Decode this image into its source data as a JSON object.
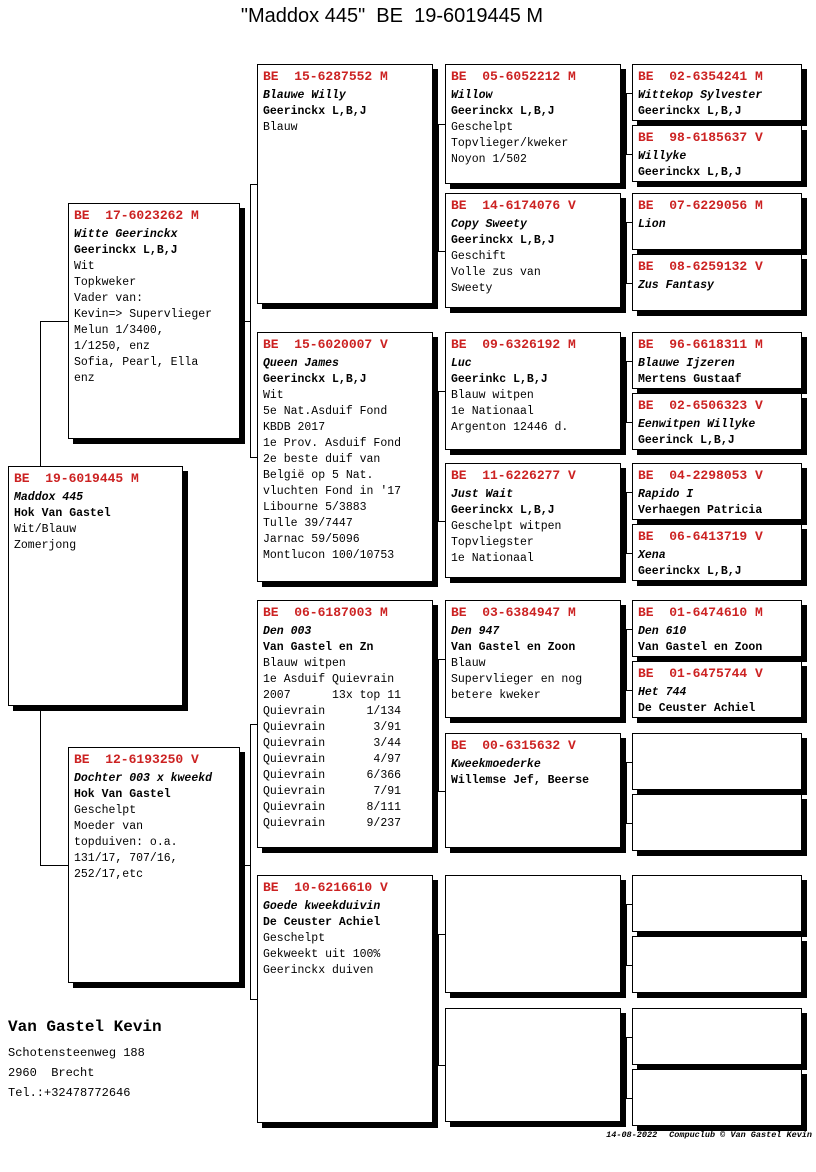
{
  "title": "\"Maddox 445\"  BE  19-6019445 M",
  "colors": {
    "ring_red": "#cc2222",
    "text": "#000000",
    "background": "#ffffff"
  },
  "owner": {
    "name": "Van Gastel Kevin",
    "address_lines": [
      "Schotensteenweg 188",
      "2960  Brecht",
      "Tel.:+32478772646"
    ]
  },
  "footer": {
    "date": "14-08-2022",
    "copyright": "Compuclub © Van Gastel Kevin"
  },
  "pedigree": {
    "gen1": [
      {
        "ring": "BE  19-6019445 M",
        "name": "Maddox 445",
        "breeder": "Hok Van Gastel",
        "lines": [
          "Wit/Blauw",
          "Zomerjong"
        ]
      }
    ],
    "gen2": [
      {
        "ring": "BE  17-6023262 M",
        "name": "Witte Geerinckx",
        "breeder": "Geerinckx L,B,J",
        "lines": [
          "Wit",
          "Topkweker",
          "Vader van:",
          "Kevin=> Supervlieger",
          "Melun 1/3400,",
          "1/1250, enz",
          "Sofia, Pearl, Ella",
          "enz"
        ]
      },
      {
        "ring": "BE  12-6193250 V",
        "name": "Dochter 003 x kweekd",
        "breeder": "Hok Van Gastel",
        "lines": [
          "Geschelpt",
          "Moeder van",
          "topduiven: o.a.",
          "131/17, 707/16,",
          "252/17,etc"
        ]
      }
    ],
    "gen3": [
      {
        "ring": "BE  15-6287552 M",
        "name": "Blauwe Willy",
        "breeder": "Geerinckx L,B,J",
        "lines": [
          "Blauw"
        ]
      },
      {
        "ring": "BE  15-6020007 V",
        "name": "Queen James",
        "breeder": "Geerinckx L,B,J",
        "lines": [
          "Wit",
          "5e Nat.Asduif Fond",
          "KBDB 2017",
          "1e Prov. Asduif Fond",
          "2e beste duif van",
          "België op 5 Nat.",
          "vluchten Fond in '17",
          "Libourne 5/3883",
          "Tulle 39/7447",
          "Jarnac 59/5096",
          "Montlucon 100/10753"
        ]
      },
      {
        "ring": "BE  06-6187003 M",
        "name": "Den 003",
        "breeder": "Van Gastel en Zn",
        "lines": [
          "Blauw witpen",
          "1e Asduif Quievrain",
          "2007      13x top 11",
          "Quievrain      1/134",
          "Quievrain       3/91",
          "Quievrain       3/44",
          "Quievrain       4/97",
          "Quievrain      6/366",
          "Quievrain       7/91",
          "Quievrain      8/111",
          "Quievrain      9/237"
        ]
      },
      {
        "ring": "BE  10-6216610 V",
        "name": "Goede kweekduivin",
        "breeder": "De Ceuster Achiel",
        "lines": [
          "Geschelpt",
          "Gekweekt uit 100%",
          "Geerinckx duiven"
        ]
      }
    ],
    "gen4": [
      {
        "ring": "BE  05-6052212 M",
        "name": "Willow",
        "breeder": "Geerinckx L,B,J",
        "lines": [
          "Geschelpt",
          "Topvlieger/kweker",
          "Noyon 1/502"
        ]
      },
      {
        "ring": "BE  14-6174076 V",
        "name": "Copy Sweety",
        "breeder": "Geerinckx L,B,J",
        "lines": [
          "Geschift",
          "Volle zus van",
          "Sweety"
        ]
      },
      {
        "ring": "BE  09-6326192 M",
        "name": "Luc",
        "breeder": "Geerinkc L,B,J",
        "lines": [
          "Blauw witpen",
          "1e Nationaal",
          "Argenton 12446 d."
        ]
      },
      {
        "ring": "BE  11-6226277 V",
        "name": "Just Wait",
        "breeder": "Geerinckx L,B,J",
        "lines": [
          "Geschelpt witpen",
          "Topvliegster",
          "1e Nationaal"
        ]
      },
      {
        "ring": "BE  03-6384947 M",
        "name": "Den 947",
        "breeder": "Van Gastel en Zoon",
        "lines": [
          "Blauw",
          "Supervlieger en nog",
          "betere kweker"
        ]
      },
      {
        "ring": "BE  00-6315632 V",
        "name": "Kweekmoederke",
        "breeder": "Willemse Jef, Beerse",
        "lines": []
      },
      {
        "empty": true
      },
      {
        "empty": true
      }
    ],
    "gen5": [
      {
        "ring": "BE  02-6354241 M",
        "name": "Wittekop Sylvester",
        "breeder": "Geerinckx L,B,J",
        "lines": []
      },
      {
        "ring": "BE  98-6185637 V",
        "name": "Willyke",
        "breeder": "Geerinckx L,B,J",
        "lines": []
      },
      {
        "ring": "BE  07-6229056 M",
        "name": "Lion",
        "lines": []
      },
      {
        "ring": "BE  08-6259132 V",
        "name": "Zus Fantasy",
        "lines": []
      },
      {
        "ring": "BE  96-6618311 M",
        "name": "Blauwe Ijzeren",
        "breeder": "Mertens Gustaaf",
        "lines": []
      },
      {
        "ring": "BE  02-6506323 V",
        "name": "Eenwitpen Willyke",
        "breeder": "Geerinck L,B,J",
        "lines": []
      },
      {
        "ring": "BE  04-2298053 V",
        "name": "Rapido I",
        "breeder": "Verhaegen Patricia",
        "lines": []
      },
      {
        "ring": "BE  06-6413719 V",
        "name": "Xena",
        "breeder": "Geerinckx L,B,J",
        "lines": []
      },
      {
        "ring": "BE  01-6474610 M",
        "name": "Den 610",
        "breeder": "Van Gastel en Zoon",
        "lines": []
      },
      {
        "ring": "BE  01-6475744 V",
        "name": "Het 744",
        "breeder": "De Ceuster Achiel",
        "lines": []
      },
      {
        "empty": true
      },
      {
        "empty": true
      },
      {
        "empty": true
      },
      {
        "empty": true
      },
      {
        "empty": true
      },
      {
        "empty": true
      }
    ]
  }
}
